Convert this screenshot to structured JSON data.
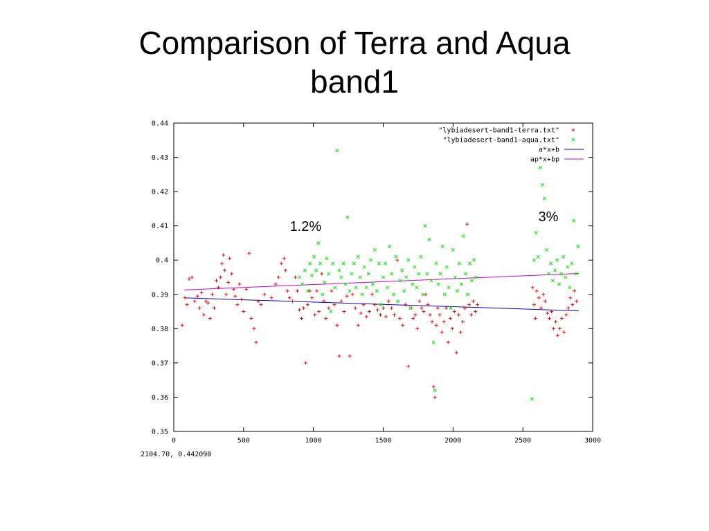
{
  "title": {
    "line1": "Comparison of Terra and Aqua",
    "line2": "band1"
  },
  "coordinate_readout": "2104.70,  0.442090",
  "chart_data": {
    "type": "scatter",
    "title": "",
    "xlabel": "",
    "ylabel": "",
    "xlim": [
      0,
      3000
    ],
    "ylim": [
      0.35,
      0.44
    ],
    "x_ticks": [
      0,
      500,
      1000,
      1500,
      2000,
      2500,
      3000
    ],
    "y_ticks": [
      0.35,
      0.36,
      0.37,
      0.38,
      0.39,
      0.4,
      0.41,
      0.42,
      0.43,
      0.44
    ],
    "y_tick_labels": [
      "0.35",
      "0.36",
      "0.37",
      "0.38",
      "0.39",
      "0.4",
      "0.41",
      "0.42",
      "0.43",
      "0.44"
    ],
    "grid": false,
    "legend_position": "top-right",
    "annotations": [
      {
        "text": "1.2%",
        "x": 940,
        "y": 0.4095
      },
      {
        "text": "3%",
        "x": 2720,
        "y": 0.4123
      }
    ],
    "series": [
      {
        "name": "\"lybiadesert-band1-terra.txt\"",
        "kind": "points",
        "marker": "+",
        "color": "#ff0000",
        "points": [
          [
            60,
            0.381
          ],
          [
            80,
            0.389
          ],
          [
            95,
            0.387
          ],
          [
            110,
            0.3945
          ],
          [
            130,
            0.395
          ],
          [
            150,
            0.388
          ],
          [
            170,
            0.3895
          ],
          [
            185,
            0.386
          ],
          [
            200,
            0.3905
          ],
          [
            215,
            0.384
          ],
          [
            230,
            0.388
          ],
          [
            245,
            0.3875
          ],
          [
            260,
            0.383
          ],
          [
            275,
            0.39
          ],
          [
            290,
            0.386
          ],
          [
            305,
            0.394
          ],
          [
            320,
            0.392
          ],
          [
            335,
            0.395
          ],
          [
            345,
            0.399
          ],
          [
            355,
            0.4015
          ],
          [
            365,
            0.397
          ],
          [
            375,
            0.39
          ],
          [
            390,
            0.3935
          ],
          [
            400,
            0.4005
          ],
          [
            415,
            0.396
          ],
          [
            430,
            0.3915
          ],
          [
            440,
            0.3895
          ],
          [
            455,
            0.387
          ],
          [
            470,
            0.393
          ],
          [
            485,
            0.3885
          ],
          [
            500,
            0.385
          ],
          [
            520,
            0.3915
          ],
          [
            540,
            0.402
          ],
          [
            555,
            0.383
          ],
          [
            575,
            0.38
          ],
          [
            590,
            0.376
          ],
          [
            605,
            0.388
          ],
          [
            625,
            0.387
          ],
          [
            650,
            0.39
          ],
          [
            700,
            0.389
          ],
          [
            730,
            0.393
          ],
          [
            750,
            0.395
          ],
          [
            770,
            0.399
          ],
          [
            790,
            0.4005
          ],
          [
            800,
            0.397
          ],
          [
            815,
            0.391
          ],
          [
            830,
            0.389
          ],
          [
            850,
            0.388
          ],
          [
            870,
            0.395
          ],
          [
            885,
            0.391
          ],
          [
            900,
            0.3855
          ],
          [
            915,
            0.383
          ],
          [
            930,
            0.386
          ],
          [
            945,
            0.37
          ],
          [
            960,
            0.387
          ],
          [
            975,
            0.391
          ],
          [
            990,
            0.389
          ],
          [
            1010,
            0.384
          ],
          [
            1025,
            0.391
          ],
          [
            1040,
            0.385
          ],
          [
            1060,
            0.396
          ],
          [
            1075,
            0.388
          ],
          [
            1090,
            0.383
          ],
          [
            1110,
            0.386
          ],
          [
            1130,
            0.391
          ],
          [
            1150,
            0.387
          ],
          [
            1170,
            0.381
          ],
          [
            1185,
            0.372
          ],
          [
            1200,
            0.388
          ],
          [
            1220,
            0.385
          ],
          [
            1240,
            0.3895
          ],
          [
            1260,
            0.372
          ],
          [
            1280,
            0.39
          ],
          [
            1300,
            0.386
          ],
          [
            1320,
            0.381
          ],
          [
            1340,
            0.3845
          ],
          [
            1360,
            0.387
          ],
          [
            1380,
            0.3835
          ],
          [
            1400,
            0.385
          ],
          [
            1420,
            0.39
          ],
          [
            1440,
            0.387
          ],
          [
            1460,
            0.3855
          ],
          [
            1480,
            0.384
          ],
          [
            1500,
            0.386
          ],
          [
            1520,
            0.3835
          ],
          [
            1540,
            0.388
          ],
          [
            1560,
            0.386
          ],
          [
            1580,
            0.384
          ],
          [
            1600,
            0.4
          ],
          [
            1620,
            0.383
          ],
          [
            1640,
            0.381
          ],
          [
            1660,
            0.387
          ],
          [
            1680,
            0.369
          ],
          [
            1700,
            0.386
          ],
          [
            1715,
            0.383
          ],
          [
            1730,
            0.384
          ],
          [
            1745,
            0.38
          ],
          [
            1760,
            0.388
          ],
          [
            1775,
            0.386
          ],
          [
            1790,
            0.385
          ],
          [
            1805,
            0.39
          ],
          [
            1820,
            0.387
          ],
          [
            1835,
            0.384
          ],
          [
            1850,
            0.382
          ],
          [
            1860,
            0.363
          ],
          [
            1870,
            0.36
          ],
          [
            1880,
            0.381
          ],
          [
            1890,
            0.386
          ],
          [
            1905,
            0.384
          ],
          [
            1920,
            0.379
          ],
          [
            1935,
            0.382
          ],
          [
            1950,
            0.386
          ],
          [
            1965,
            0.376
          ],
          [
            1980,
            0.383
          ],
          [
            1995,
            0.38
          ],
          [
            2010,
            0.385
          ],
          [
            2025,
            0.373
          ],
          [
            2040,
            0.384
          ],
          [
            2055,
            0.379
          ],
          [
            2070,
            0.382
          ],
          [
            2085,
            0.386
          ],
          [
            2100,
            0.4105
          ],
          [
            2115,
            0.387
          ],
          [
            2130,
            0.384
          ],
          [
            2145,
            0.388
          ],
          [
            2160,
            0.385
          ],
          [
            2175,
            0.387
          ],
          [
            2570,
            0.392
          ],
          [
            2580,
            0.387
          ],
          [
            2590,
            0.383
          ],
          [
            2600,
            0.391
          ],
          [
            2615,
            0.389
          ],
          [
            2630,
            0.386
          ],
          [
            2645,
            0.39
          ],
          [
            2660,
            0.388
          ],
          [
            2675,
            0.3845
          ],
          [
            2690,
            0.383
          ],
          [
            2705,
            0.385
          ],
          [
            2720,
            0.38
          ],
          [
            2735,
            0.382
          ],
          [
            2750,
            0.378
          ],
          [
            2765,
            0.38
          ],
          [
            2780,
            0.383
          ],
          [
            2795,
            0.379
          ],
          [
            2810,
            0.384
          ],
          [
            2825,
            0.386
          ],
          [
            2840,
            0.389
          ],
          [
            2855,
            0.387
          ],
          [
            2870,
            0.391
          ],
          [
            2885,
            0.388
          ]
        ]
      },
      {
        "name": "\"lybiadesert-band1-aqua.txt\"",
        "kind": "points",
        "marker": "x",
        "color": "#00ee00",
        "points": [
          [
            900,
            0.395
          ],
          [
            920,
            0.393
          ],
          [
            940,
            0.397
          ],
          [
            960,
            0.391
          ],
          [
            975,
            0.399
          ],
          [
            990,
            0.3955
          ],
          [
            1005,
            0.401
          ],
          [
            1020,
            0.397
          ],
          [
            1035,
            0.405
          ],
          [
            1050,
            0.399
          ],
          [
            1065,
            0.39
          ],
          [
            1080,
            0.3935
          ],
          [
            1095,
            0.4005
          ],
          [
            1110,
            0.396
          ],
          [
            1125,
            0.385
          ],
          [
            1140,
            0.399
          ],
          [
            1155,
            0.392
          ],
          [
            1170,
            0.432
          ],
          [
            1185,
            0.397
          ],
          [
            1200,
            0.395
          ],
          [
            1215,
            0.399
          ],
          [
            1230,
            0.393
          ],
          [
            1245,
            0.4125
          ],
          [
            1260,
            0.391
          ],
          [
            1275,
            0.396
          ],
          [
            1290,
            0.399
          ],
          [
            1305,
            0.392
          ],
          [
            1320,
            0.401
          ],
          [
            1335,
            0.395
          ],
          [
            1350,
            0.39
          ],
          [
            1365,
            0.398
          ],
          [
            1380,
            0.392
          ],
          [
            1395,
            0.396
          ],
          [
            1410,
            0.4
          ],
          [
            1425,
            0.393
          ],
          [
            1440,
            0.403
          ],
          [
            1455,
            0.391
          ],
          [
            1470,
            0.399
          ],
          [
            1485,
            0.387
          ],
          [
            1500,
            0.395
          ],
          [
            1515,
            0.399
          ],
          [
            1530,
            0.392
          ],
          [
            1545,
            0.404
          ],
          [
            1560,
            0.396
          ],
          [
            1575,
            0.39
          ],
          [
            1590,
            0.401
          ],
          [
            1605,
            0.388
          ],
          [
            1620,
            0.394
          ],
          [
            1635,
            0.397
          ],
          [
            1650,
            0.391
          ],
          [
            1665,
            0.395
          ],
          [
            1680,
            0.4
          ],
          [
            1695,
            0.386
          ],
          [
            1710,
            0.393
          ],
          [
            1725,
            0.398
          ],
          [
            1740,
            0.392
          ],
          [
            1755,
            0.396
          ],
          [
            1770,
            0.401
          ],
          [
            1785,
            0.39
          ],
          [
            1800,
            0.41
          ],
          [
            1815,
            0.396
          ],
          [
            1830,
            0.406
          ],
          [
            1845,
            0.394
          ],
          [
            1860,
            0.376
          ],
          [
            1870,
            0.362
          ],
          [
            1880,
            0.399
          ],
          [
            1895,
            0.393
          ],
          [
            1910,
            0.396
          ],
          [
            1925,
            0.404
          ],
          [
            1940,
            0.39
          ],
          [
            1955,
            0.398
          ],
          [
            1970,
            0.392
          ],
          [
            1985,
            0.386
          ],
          [
            2000,
            0.403
          ],
          [
            2015,
            0.395
          ],
          [
            2030,
            0.391
          ],
          [
            2045,
            0.399
          ],
          [
            2060,
            0.393
          ],
          [
            2075,
            0.407
          ],
          [
            2090,
            0.396
          ],
          [
            2105,
            0.39
          ],
          [
            2120,
            0.399
          ],
          [
            2135,
            0.394
          ],
          [
            2150,
            0.4
          ],
          [
            2165,
            0.395
          ],
          [
            2565,
            0.3595
          ],
          [
            2580,
            0.4
          ],
          [
            2595,
            0.408
          ],
          [
            2610,
            0.401
          ],
          [
            2625,
            0.427
          ],
          [
            2640,
            0.422
          ],
          [
            2655,
            0.418
          ],
          [
            2670,
            0.403
          ],
          [
            2685,
            0.396
          ],
          [
            2700,
            0.399
          ],
          [
            2715,
            0.394
          ],
          [
            2730,
            0.397
          ],
          [
            2745,
            0.4
          ],
          [
            2760,
            0.393
          ],
          [
            2775,
            0.396
          ],
          [
            2790,
            0.401
          ],
          [
            2805,
            0.395
          ],
          [
            2820,
            0.398
          ],
          [
            2835,
            0.392
          ],
          [
            2850,
            0.399
          ],
          [
            2865,
            0.4115
          ],
          [
            2880,
            0.396
          ],
          [
            2895,
            0.404
          ]
        ]
      },
      {
        "name": "a*x+b",
        "kind": "line",
        "color": "#0000cc",
        "x": [
          75,
          2900
        ],
        "y": [
          0.389,
          0.3852
        ]
      },
      {
        "name": "ap*x+bp",
        "kind": "line",
        "color": "#cc00cc",
        "x": [
          75,
          2900
        ],
        "y": [
          0.3913,
          0.3961
        ]
      }
    ]
  }
}
